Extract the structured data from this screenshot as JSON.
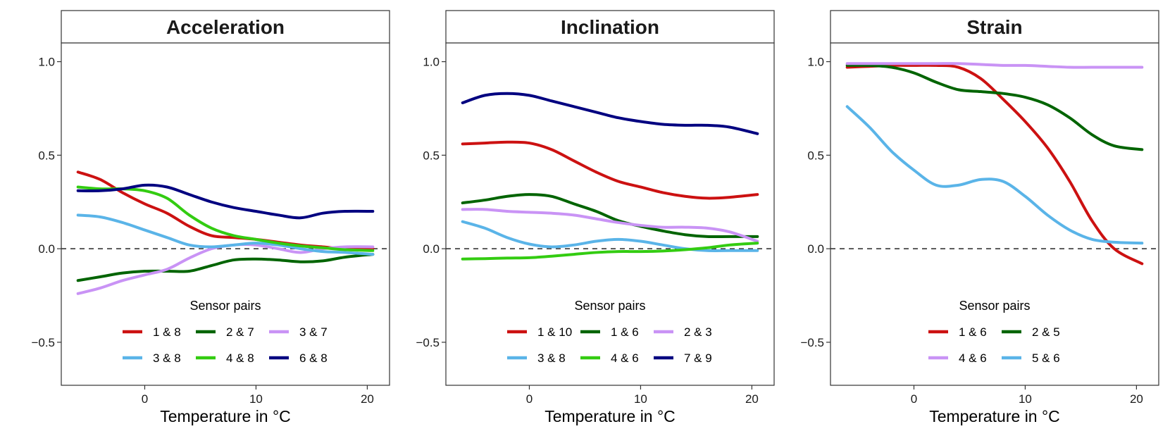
{
  "chart_data": [
    {
      "type": "line",
      "title": "Acceleration",
      "xlabel": "Temperature in °C",
      "ylabel": "",
      "xlim": [
        -7.5,
        22
      ],
      "ylim": [
        -0.73,
        1.1
      ],
      "x_ticks": [
        0,
        10,
        20
      ],
      "y_ticks": [
        -0.5,
        0.0,
        0.5,
        1.0
      ],
      "x_tick_labels": [
        "0",
        "10",
        "20"
      ],
      "y_tick_labels": [
        "−0.5",
        "0.0",
        "0.5",
        "1.0"
      ],
      "reference_line": 0,
      "legend_title": "Sensor pairs",
      "legend_columns": 3,
      "series": [
        {
          "name": "1 & 8",
          "color": "#cc1111",
          "x": [
            -6,
            -4,
            -2,
            0,
            2,
            4,
            6,
            8,
            10,
            12,
            14,
            16,
            18,
            20.5
          ],
          "y": [
            0.41,
            0.37,
            0.3,
            0.24,
            0.19,
            0.12,
            0.07,
            0.06,
            0.05,
            0.035,
            0.02,
            0.01,
            0.0,
            0.0
          ]
        },
        {
          "name": "2 & 7",
          "color": "#006400",
          "x": [
            -6,
            -4,
            -2,
            0,
            2,
            4,
            6,
            8,
            10,
            12,
            14,
            16,
            18,
            20.5
          ],
          "y": [
            -0.17,
            -0.15,
            -0.13,
            -0.12,
            -0.12,
            -0.12,
            -0.09,
            -0.06,
            -0.055,
            -0.06,
            -0.07,
            -0.065,
            -0.045,
            -0.03
          ]
        },
        {
          "name": "3 & 7",
          "color": "#c993f5",
          "x": [
            -6,
            -4,
            -2,
            0,
            2,
            4,
            6,
            8,
            10,
            12,
            14,
            16,
            18,
            20.5
          ],
          "y": [
            -0.24,
            -0.21,
            -0.17,
            -0.14,
            -0.11,
            -0.05,
            0.0,
            0.02,
            0.02,
            0.0,
            -0.02,
            0.0,
            0.01,
            0.01
          ]
        },
        {
          "name": "3 & 8",
          "color": "#5ab4e8",
          "x": [
            -6,
            -4,
            -2,
            0,
            2,
            4,
            6,
            8,
            10,
            12,
            14,
            16,
            18,
            20.5
          ],
          "y": [
            0.18,
            0.17,
            0.14,
            0.1,
            0.06,
            0.02,
            0.01,
            0.02,
            0.03,
            0.02,
            0.0,
            -0.015,
            -0.02,
            -0.03
          ]
        },
        {
          "name": "4 & 8",
          "color": "#33cc11",
          "x": [
            -6,
            -4,
            -2,
            0,
            2,
            4,
            6,
            8,
            10,
            12,
            14,
            16,
            18,
            20.5
          ],
          "y": [
            0.33,
            0.32,
            0.32,
            0.31,
            0.27,
            0.18,
            0.11,
            0.07,
            0.05,
            0.03,
            0.015,
            0.005,
            -0.005,
            -0.01
          ]
        },
        {
          "name": "6 & 8",
          "color": "#000080",
          "x": [
            -6,
            -4,
            -2,
            0,
            2,
            4,
            6,
            8,
            10,
            12,
            14,
            16,
            18,
            20.5
          ],
          "y": [
            0.31,
            0.31,
            0.32,
            0.34,
            0.33,
            0.29,
            0.25,
            0.22,
            0.2,
            0.18,
            0.165,
            0.19,
            0.2,
            0.2
          ]
        }
      ]
    },
    {
      "type": "line",
      "title": "Inclination",
      "xlabel": "Temperature in °C",
      "ylabel": "",
      "xlim": [
        -7.5,
        22
      ],
      "ylim": [
        -0.73,
        1.1
      ],
      "x_ticks": [
        0,
        10,
        20
      ],
      "y_ticks": [
        -0.5,
        0.0,
        0.5,
        1.0
      ],
      "x_tick_labels": [
        "0",
        "10",
        "20"
      ],
      "y_tick_labels": [
        "−0.5",
        "0.0",
        "0.5",
        "1.0"
      ],
      "reference_line": 0,
      "legend_title": "Sensor pairs",
      "legend_columns": 3,
      "series": [
        {
          "name": "1 & 10",
          "color": "#cc1111",
          "x": [
            -6,
            -4,
            -2,
            0,
            2,
            4,
            6,
            8,
            10,
            12,
            14,
            16,
            18,
            20.5
          ],
          "y": [
            0.56,
            0.565,
            0.57,
            0.565,
            0.53,
            0.47,
            0.41,
            0.36,
            0.33,
            0.3,
            0.28,
            0.27,
            0.275,
            0.29
          ]
        },
        {
          "name": "1 & 6",
          "color": "#006400",
          "x": [
            -6,
            -4,
            -2,
            0,
            2,
            4,
            6,
            8,
            10,
            12,
            14,
            16,
            18,
            20.5
          ],
          "y": [
            0.245,
            0.26,
            0.28,
            0.29,
            0.28,
            0.24,
            0.2,
            0.15,
            0.12,
            0.095,
            0.075,
            0.065,
            0.065,
            0.065
          ]
        },
        {
          "name": "2 & 3",
          "color": "#c993f5",
          "x": [
            -6,
            -4,
            -2,
            0,
            2,
            4,
            6,
            8,
            10,
            12,
            14,
            16,
            18,
            20.5
          ],
          "y": [
            0.21,
            0.21,
            0.2,
            0.195,
            0.19,
            0.18,
            0.16,
            0.14,
            0.125,
            0.115,
            0.115,
            0.11,
            0.09,
            0.04
          ]
        },
        {
          "name": "3 & 8",
          "color": "#5ab4e8",
          "x": [
            -6,
            -4,
            -2,
            0,
            2,
            4,
            6,
            8,
            10,
            12,
            14,
            16,
            18,
            20.5
          ],
          "y": [
            0.145,
            0.11,
            0.06,
            0.025,
            0.01,
            0.02,
            0.04,
            0.05,
            0.04,
            0.02,
            0.0,
            -0.01,
            -0.01,
            -0.01
          ]
        },
        {
          "name": "4 & 6",
          "color": "#33cc11",
          "x": [
            -6,
            -4,
            -2,
            0,
            2,
            4,
            6,
            8,
            10,
            12,
            14,
            16,
            18,
            20.5
          ],
          "y": [
            -0.055,
            -0.053,
            -0.05,
            -0.048,
            -0.04,
            -0.03,
            -0.02,
            -0.015,
            -0.015,
            -0.012,
            -0.005,
            0.005,
            0.02,
            0.03
          ]
        },
        {
          "name": "7 & 9",
          "color": "#000080",
          "x": [
            -6,
            -4,
            -2,
            0,
            2,
            4,
            6,
            8,
            10,
            12,
            14,
            16,
            18,
            20.5
          ],
          "y": [
            0.78,
            0.82,
            0.83,
            0.82,
            0.79,
            0.76,
            0.73,
            0.7,
            0.68,
            0.665,
            0.66,
            0.66,
            0.65,
            0.615
          ]
        }
      ]
    },
    {
      "type": "line",
      "title": "Strain",
      "xlabel": "Temperature in °C",
      "ylabel": "",
      "xlim": [
        -7.5,
        22
      ],
      "ylim": [
        -0.73,
        1.1
      ],
      "x_ticks": [
        0,
        10,
        20
      ],
      "y_ticks": [
        -0.5,
        0.0,
        0.5,
        1.0
      ],
      "x_tick_labels": [
        "0",
        "10",
        "20"
      ],
      "y_tick_labels": [
        "−0.5",
        "0.0",
        "0.5",
        "1.0"
      ],
      "reference_line": 0,
      "legend_title": "Sensor pairs",
      "legend_columns": 2,
      "series": [
        {
          "name": "1 & 6",
          "color": "#cc1111",
          "x": [
            -6,
            -4,
            -2,
            0,
            2,
            4,
            6,
            8,
            10,
            12,
            14,
            16,
            18,
            20.5
          ],
          "y": [
            0.97,
            0.975,
            0.98,
            0.98,
            0.98,
            0.97,
            0.91,
            0.8,
            0.68,
            0.54,
            0.36,
            0.15,
            0.0,
            -0.08
          ]
        },
        {
          "name": "2 & 5",
          "color": "#006400",
          "x": [
            -6,
            -4,
            -2,
            0,
            2,
            4,
            6,
            8,
            10,
            12,
            14,
            16,
            18,
            20.5
          ],
          "y": [
            0.98,
            0.98,
            0.97,
            0.94,
            0.89,
            0.85,
            0.84,
            0.83,
            0.81,
            0.77,
            0.7,
            0.61,
            0.55,
            0.53
          ]
        },
        {
          "name": "4 & 6",
          "color": "#c993f5",
          "x": [
            -6,
            -4,
            -2,
            0,
            2,
            4,
            6,
            8,
            10,
            12,
            14,
            16,
            18,
            20.5
          ],
          "y": [
            0.99,
            0.99,
            0.99,
            0.99,
            0.99,
            0.99,
            0.985,
            0.98,
            0.98,
            0.975,
            0.97,
            0.97,
            0.97,
            0.97
          ]
        },
        {
          "name": "5 & 6",
          "color": "#5ab4e8",
          "x": [
            -6,
            -4,
            -2,
            0,
            2,
            4,
            6,
            8,
            10,
            12,
            14,
            16,
            18,
            20.5
          ],
          "y": [
            0.76,
            0.65,
            0.52,
            0.42,
            0.34,
            0.34,
            0.37,
            0.36,
            0.28,
            0.18,
            0.1,
            0.05,
            0.035,
            0.03
          ]
        }
      ]
    }
  ]
}
